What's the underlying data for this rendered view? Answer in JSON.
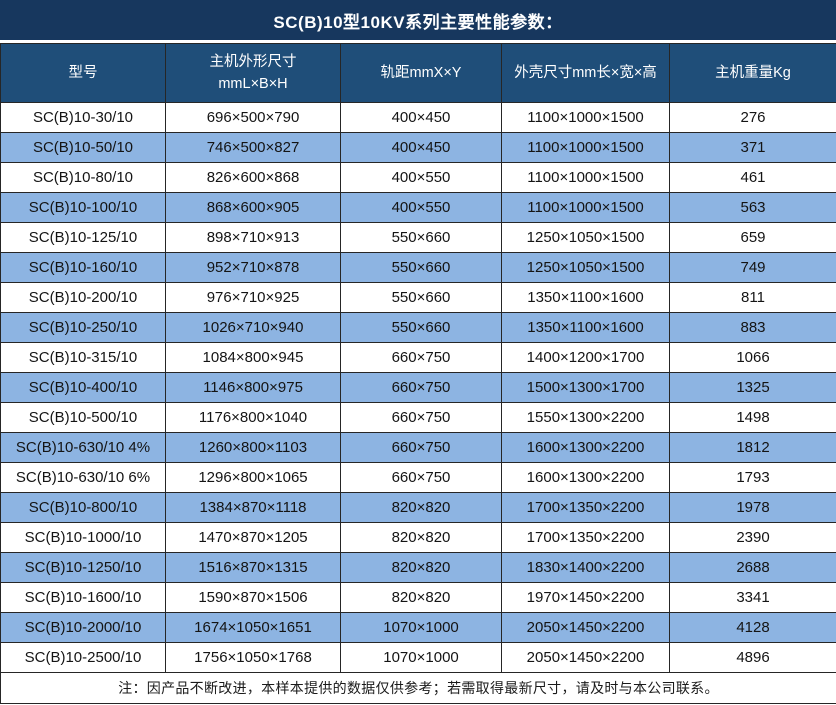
{
  "title": "SC(B)10型10KV系列主要性能参数：",
  "table": {
    "headers": {
      "model": "型号",
      "host_dimensions": "主机外形尺寸\nmmL×B×H",
      "rail_gauge": "轨距mmX×Y",
      "shell_dimensions": "外壳尺寸mm长×宽×高",
      "host_weight": "主机重量Kg"
    },
    "rows": [
      [
        "SC(B)10-30/10",
        "696×500×790",
        "400×450",
        "1100×1000×1500",
        "276"
      ],
      [
        "SC(B)10-50/10",
        "746×500×827",
        "400×450",
        "1100×1000×1500",
        "371"
      ],
      [
        "SC(B)10-80/10",
        "826×600×868",
        "400×550",
        "1100×1000×1500",
        "461"
      ],
      [
        "SC(B)10-100/10",
        "868×600×905",
        "400×550",
        "1100×1000×1500",
        "563"
      ],
      [
        "SC(B)10-125/10",
        "898×710×913",
        "550×660",
        "1250×1050×1500",
        "659"
      ],
      [
        "SC(B)10-160/10",
        "952×710×878",
        "550×660",
        "1250×1050×1500",
        "749"
      ],
      [
        "SC(B)10-200/10",
        "976×710×925",
        "550×660",
        "1350×1100×1600",
        "811"
      ],
      [
        "SC(B)10-250/10",
        "1026×710×940",
        "550×660",
        "1350×1100×1600",
        "883"
      ],
      [
        "SC(B)10-315/10",
        "1084×800×945",
        "660×750",
        "1400×1200×1700",
        "1066"
      ],
      [
        "SC(B)10-400/10",
        "1146×800×975",
        "660×750",
        "1500×1300×1700",
        "1325"
      ],
      [
        "SC(B)10-500/10",
        "1176×800×1040",
        "660×750",
        "1550×1300×2200",
        "1498"
      ],
      [
        "SC(B)10-630/10 4%",
        "1260×800×1103",
        "660×750",
        "1600×1300×2200",
        "1812"
      ],
      [
        "SC(B)10-630/10 6%",
        "1296×800×1065",
        "660×750",
        "1600×1300×2200",
        "1793"
      ],
      [
        "SC(B)10-800/10",
        "1384×870×1118",
        "820×820",
        "1700×1350×2200",
        "1978"
      ],
      [
        "SC(B)10-1000/10",
        "1470×870×1205",
        "820×820",
        "1700×1350×2200",
        "2390"
      ],
      [
        "SC(B)10-1250/10",
        "1516×870×1315",
        "820×820",
        "1830×1400×2200",
        "2688"
      ],
      [
        "SC(B)10-1600/10",
        "1590×870×1506",
        "820×820",
        "1970×1450×2200",
        "3341"
      ],
      [
        "SC(B)10-2000/10",
        "1674×1050×1651",
        "1070×1000",
        "2050×1450×2200",
        "4128"
      ],
      [
        "SC(B)10-2500/10",
        "1756×1050×1768",
        "1070×1000",
        "2050×1450×2200",
        "4896"
      ]
    ],
    "column_names": [
      "model-cell",
      "host-dimensions-cell",
      "rail-gauge-cell",
      "shell-dimensions-cell",
      "host-weight-cell"
    ]
  },
  "note": "注：因产品不断改进，本样本提供的数据仅供参考；若需取得最新尺寸，请及时与本公司联系。",
  "colors": {
    "title_bg": "#17375e",
    "header_bg": "#1f4e79",
    "alt_row_bg": "#8db4e2",
    "row_bg": "#ffffff",
    "border": "#262626",
    "header_text": "#ffffff"
  }
}
